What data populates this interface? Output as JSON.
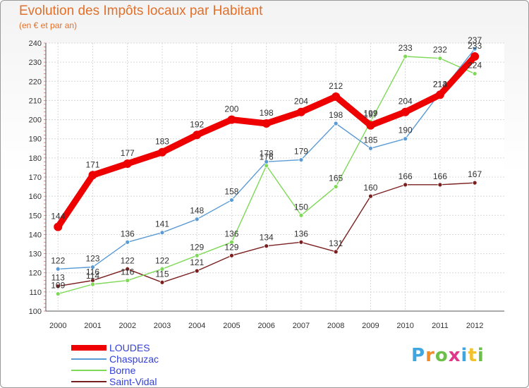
{
  "title": "Evolution des Impôts locaux par Habitant",
  "subtitle": "(en € et par an)",
  "logo": {
    "chars": [
      "P",
      "r",
      "o",
      "x",
      "i",
      "t",
      "i"
    ],
    "colors": [
      "#3fa6e0",
      "#f28c28",
      "#6cc04a",
      "#e0378a",
      "#3fa6e0",
      "#f2c12e",
      "#6cc04a"
    ]
  },
  "chart_data": {
    "type": "line",
    "x": [
      2000,
      2001,
      2002,
      2003,
      2004,
      2005,
      2006,
      2007,
      2008,
      2009,
      2010,
      2011,
      2012
    ],
    "ylim": [
      100,
      240
    ],
    "yticks": [
      100,
      110,
      120,
      130,
      140,
      150,
      160,
      170,
      180,
      190,
      200,
      210,
      220,
      230,
      240
    ],
    "grid": true,
    "legend_position": "bottom-left",
    "series": [
      {
        "name": "LOUDES",
        "color": "#ee0000",
        "values": [
          144,
          171,
          177,
          183,
          192,
          200,
          198,
          204,
          212,
          197,
          204,
          213,
          233
        ]
      },
      {
        "name": "Chaspuzac",
        "color": "#5b9bd5",
        "values": [
          122,
          123,
          136,
          141,
          148,
          158,
          178,
          179,
          198,
          185,
          190,
          214,
          237
        ]
      },
      {
        "name": "Borne",
        "color": "#7ed957",
        "values": [
          109,
          114,
          116,
          122,
          129,
          136,
          176,
          150,
          165,
          199,
          233,
          232,
          224
        ]
      },
      {
        "name": "Saint-Vidal",
        "color": "#7a1f1f",
        "values": [
          113,
          116,
          122,
          115,
          121,
          129,
          134,
          136,
          131,
          160,
          166,
          166,
          167
        ]
      }
    ]
  }
}
